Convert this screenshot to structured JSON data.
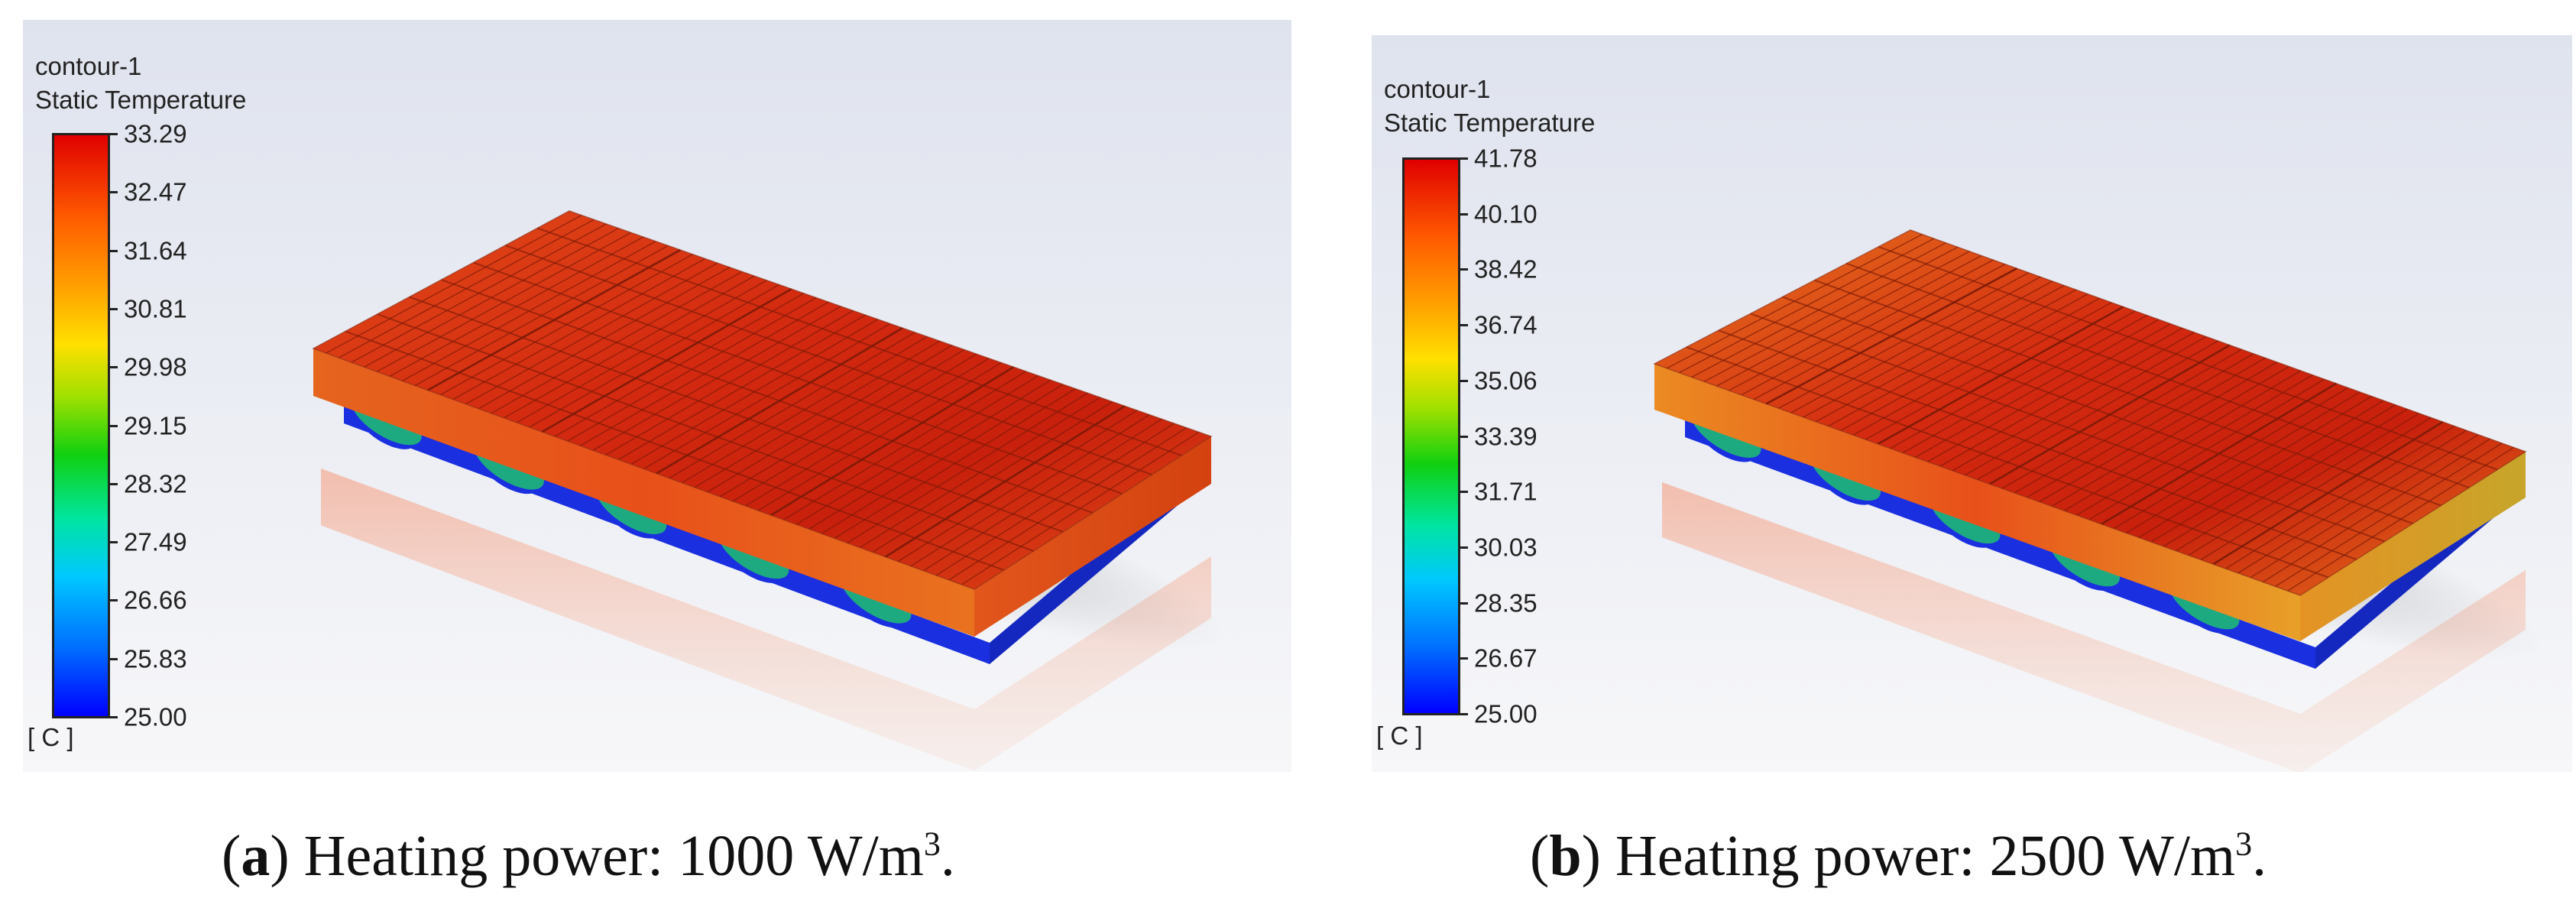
{
  "panels": [
    {
      "legend_name": "contour-1",
      "legend_variable": "Static Temperature",
      "ticks": [
        "33.29",
        "32.47",
        "31.64",
        "30.81",
        "29.98",
        "29.15",
        "28.32",
        "27.49",
        "26.66",
        "25.83",
        "25.00"
      ],
      "unit": "[ C ]",
      "caption_letter": "a",
      "caption_text": "Heating power: 1000 W/m",
      "caption_sup": "3",
      "caption_end": "."
    },
    {
      "legend_name": "contour-1",
      "legend_variable": "Static Temperature",
      "ticks": [
        "41.78",
        "40.10",
        "38.42",
        "36.74",
        "35.06",
        "33.39",
        "31.71",
        "30.03",
        "28.35",
        "26.67",
        "25.00"
      ],
      "unit": "[ C ]",
      "caption_letter": "b",
      "caption_text": "Heating power: 2500 W/m",
      "caption_sup": "3",
      "caption_end": "."
    }
  ],
  "colors": {
    "hot": "#d42a10",
    "mid": "#e8501a",
    "edge": "#e87520",
    "cool": "#1a2fe0",
    "grid": "#7a1a08"
  }
}
